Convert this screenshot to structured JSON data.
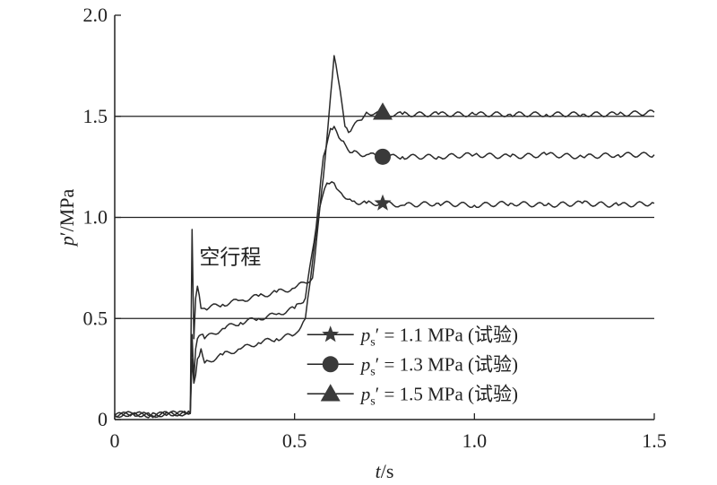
{
  "chart_data": {
    "type": "line",
    "xlabel_var": "t",
    "xlabel_unit": "/s",
    "ylabel_var": "p",
    "ylabel_unit": "′/MPa",
    "xlim": [
      0,
      1.5
    ],
    "ylim": [
      0,
      2.0
    ],
    "x_ticks": [
      "0",
      "0.5",
      "1.0",
      "1.5"
    ],
    "x_tick_values": [
      0,
      0.5,
      1.0,
      1.5
    ],
    "y_ticks": [
      "0",
      "0.5",
      "1.0",
      "1.5",
      "2.0"
    ],
    "y_tick_values": [
      0,
      0.5,
      1.0,
      1.5,
      2.0
    ],
    "reference_lines": [
      0.5,
      1.0,
      1.5
    ],
    "annotation": "空行程",
    "series": [
      {
        "name": "p_s′ = 1.1 MPa (试验)",
        "legend_var": "p",
        "legend_sub": "s",
        "legend_rest": "′ = 1.1 MPa (试验)",
        "marker": "star",
        "marker_at": [
          0.745,
          1.07
        ],
        "x": [
          0,
          0.05,
          0.1,
          0.15,
          0.2,
          0.21,
          0.215,
          0.22,
          0.225,
          0.23,
          0.24,
          0.25,
          0.3,
          0.35,
          0.4,
          0.45,
          0.5,
          0.53,
          0.55,
          0.57,
          0.59,
          0.61,
          0.63,
          0.66,
          0.7,
          0.75,
          0.8,
          0.9,
          1.0,
          1.1,
          1.2,
          1.3,
          1.4,
          1.5
        ],
        "y": [
          0.02,
          0.03,
          0.02,
          0.03,
          0.03,
          0.03,
          0.3,
          0.18,
          0.22,
          0.3,
          0.35,
          0.28,
          0.32,
          0.35,
          0.38,
          0.4,
          0.42,
          0.5,
          0.78,
          1.05,
          1.17,
          1.17,
          1.12,
          1.08,
          1.07,
          1.07,
          1.06,
          1.07,
          1.06,
          1.07,
          1.06,
          1.07,
          1.06,
          1.07
        ]
      },
      {
        "name": "p_s′ = 1.3 MPa (试验)",
        "legend_var": "p",
        "legend_sub": "s",
        "legend_rest": "′ = 1.3 MPa (试验)",
        "marker": "circle",
        "marker_at": [
          0.745,
          1.3
        ],
        "x": [
          0,
          0.05,
          0.1,
          0.15,
          0.2,
          0.21,
          0.215,
          0.22,
          0.225,
          0.23,
          0.24,
          0.25,
          0.3,
          0.35,
          0.4,
          0.45,
          0.5,
          0.53,
          0.56,
          0.58,
          0.6,
          0.61,
          0.63,
          0.66,
          0.7,
          0.75,
          0.8,
          0.9,
          1.0,
          1.1,
          1.2,
          1.3,
          1.4,
          1.5
        ],
        "y": [
          0.02,
          0.03,
          0.02,
          0.03,
          0.03,
          0.03,
          0.42,
          0.2,
          0.35,
          0.4,
          0.42,
          0.4,
          0.45,
          0.48,
          0.5,
          0.52,
          0.55,
          0.6,
          0.95,
          1.3,
          1.44,
          1.45,
          1.38,
          1.32,
          1.31,
          1.3,
          1.3,
          1.3,
          1.31,
          1.3,
          1.31,
          1.3,
          1.31,
          1.31
        ]
      },
      {
        "name": "p_s′ = 1.5 MPa (试验)",
        "legend_var": "p",
        "legend_sub": "s",
        "legend_rest": "′ = 1.5 MPa (试验)",
        "marker": "triangle",
        "marker_at": [
          0.745,
          1.52
        ],
        "x": [
          0,
          0.05,
          0.1,
          0.15,
          0.2,
          0.21,
          0.215,
          0.22,
          0.225,
          0.23,
          0.24,
          0.25,
          0.3,
          0.35,
          0.4,
          0.45,
          0.5,
          0.55,
          0.58,
          0.6,
          0.61,
          0.62,
          0.64,
          0.65,
          0.68,
          0.7,
          0.75,
          0.8,
          0.9,
          1.0,
          1.1,
          1.2,
          1.3,
          1.4,
          1.5
        ],
        "y": [
          0.02,
          0.03,
          0.02,
          0.03,
          0.03,
          0.03,
          0.94,
          0.4,
          0.6,
          0.66,
          0.55,
          0.55,
          0.57,
          0.59,
          0.61,
          0.63,
          0.65,
          0.7,
          1.2,
          1.6,
          1.8,
          1.7,
          1.45,
          1.42,
          1.48,
          1.52,
          1.51,
          1.51,
          1.51,
          1.51,
          1.51,
          1.51,
          1.51,
          1.51,
          1.52
        ]
      }
    ]
  }
}
